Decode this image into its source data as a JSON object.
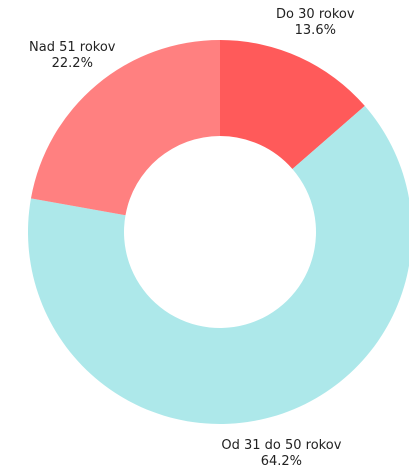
{
  "chart_data": {
    "type": "donut",
    "categories": [
      "Do 30 rokov",
      "Od 31 do 50 rokov",
      "Nad 51 rokov"
    ],
    "values": [
      13.6,
      64.2,
      22.2
    ],
    "value_labels": [
      "13.6%",
      "64.2%",
      "22.2%"
    ],
    "colors": [
      "#ff5a5a",
      "#ade8ea",
      "#ff8080"
    ]
  }
}
